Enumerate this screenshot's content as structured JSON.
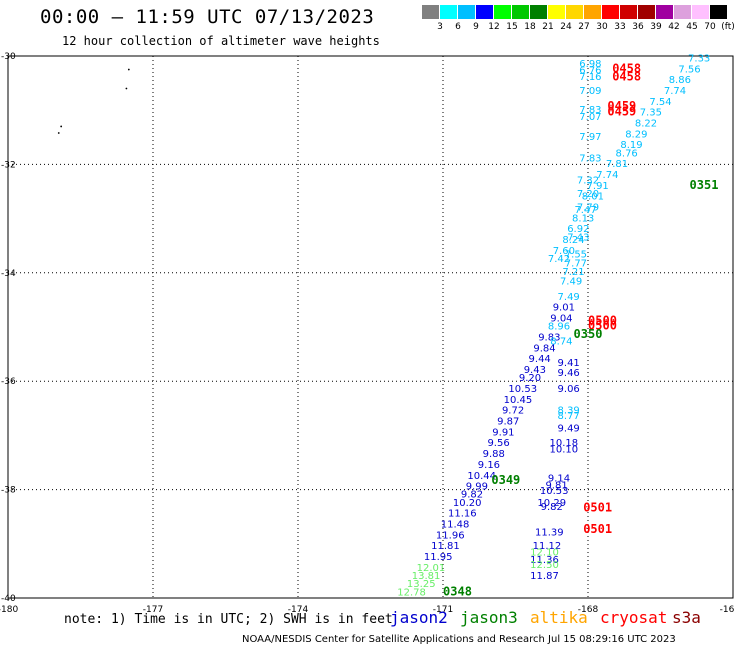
{
  "header": {
    "title": "00:00 – 11:59 UTC 07/13/2023",
    "subtitle": "12 hour collection of altimeter wave heights"
  },
  "colorbar": {
    "unit": "(ft)",
    "swatches": [
      {
        "color": "#808080",
        "label": "3"
      },
      {
        "color": "#00ffff",
        "label": "6"
      },
      {
        "color": "#00bfff",
        "label": "9"
      },
      {
        "color": "#0000ff",
        "label": "12"
      },
      {
        "color": "#00ff00",
        "label": "15"
      },
      {
        "color": "#00c800",
        "label": "18"
      },
      {
        "color": "#008000",
        "label": "21"
      },
      {
        "color": "#ffff00",
        "label": "24"
      },
      {
        "color": "#ffd700",
        "label": "27"
      },
      {
        "color": "#ffa500",
        "label": "30"
      },
      {
        "color": "#ff0000",
        "label": "33"
      },
      {
        "color": "#d00000",
        "label": "36"
      },
      {
        "color": "#a00000",
        "label": "39"
      },
      {
        "color": "#a000a0",
        "label": "42"
      },
      {
        "color": "#dda0dd",
        "label": "45"
      },
      {
        "color": "#ffc0ff",
        "label": "70"
      },
      {
        "color": "#000000",
        "label": ""
      }
    ]
  },
  "map_data": {
    "lon_range": [
      -180,
      -165
    ],
    "lat_range": [
      -40,
      -30
    ],
    "lon_ticks": [
      "-180",
      "-177",
      "-174",
      "-171",
      "-168",
      "-16"
    ],
    "lat_ticks": [
      "-30",
      "-32",
      "-34",
      "-36",
      "-38",
      "-40"
    ],
    "pass_labels": [
      {
        "text": "0458",
        "lon": -167.2,
        "lat": -30.3,
        "color": "#ff0000"
      },
      {
        "text": "0458",
        "lon": -167.2,
        "lat": -30.45,
        "color": "#ff0000"
      },
      {
        "text": "0459",
        "lon": -167.3,
        "lat": -31.0,
        "color": "#ff0000"
      },
      {
        "text": "0459",
        "lon": -167.3,
        "lat": -31.1,
        "color": "#ff0000"
      },
      {
        "text": "0351",
        "lon": -165.6,
        "lat": -32.45,
        "color": "#008000"
      },
      {
        "text": "0500",
        "lon": -167.7,
        "lat": -34.95,
        "color": "#ff0000"
      },
      {
        "text": "0500",
        "lon": -167.7,
        "lat": -35.05,
        "color": "#ff0000"
      },
      {
        "text": "0350",
        "lon": -168.0,
        "lat": -35.2,
        "color": "#008000"
      },
      {
        "text": "0349",
        "lon": -169.7,
        "lat": -37.9,
        "color": "#008000"
      },
      {
        "text": "0501",
        "lon": -167.8,
        "lat": -38.4,
        "color": "#ff0000"
      },
      {
        "text": "0501",
        "lon": -167.8,
        "lat": -38.8,
        "color": "#ff0000"
      },
      {
        "text": "0348",
        "lon": -170.7,
        "lat": -39.95,
        "color": "#008000"
      }
    ],
    "observations": [
      {
        "v": "7.33",
        "lon": -165.7,
        "lat": -30.1,
        "c": "#00bfff"
      },
      {
        "v": "7.56",
        "lon": -165.9,
        "lat": -30.3,
        "c": "#00bfff"
      },
      {
        "v": "8.86",
        "lon": -166.1,
        "lat": -30.5,
        "c": "#00bfff"
      },
      {
        "v": "7.74",
        "lon": -166.2,
        "lat": -30.7,
        "c": "#00bfff"
      },
      {
        "v": "7.54",
        "lon": -166.5,
        "lat": -30.9,
        "c": "#00bfff"
      },
      {
        "v": "7.35",
        "lon": -166.7,
        "lat": -31.1,
        "c": "#00bfff"
      },
      {
        "v": "8.22",
        "lon": -166.8,
        "lat": -31.3,
        "c": "#00bfff"
      },
      {
        "v": "8.29",
        "lon": -167.0,
        "lat": -31.5,
        "c": "#00bfff"
      },
      {
        "v": "8.19",
        "lon": -167.1,
        "lat": -31.7,
        "c": "#00bfff"
      },
      {
        "v": "8.76",
        "lon": -167.2,
        "lat": -31.85,
        "c": "#00bfff"
      },
      {
        "v": "7.81",
        "lon": -167.4,
        "lat": -32.05,
        "c": "#00bfff"
      },
      {
        "v": "7.74",
        "lon": -167.6,
        "lat": -32.25,
        "c": "#00bfff"
      },
      {
        "v": "7.91",
        "lon": -167.8,
        "lat": -32.45,
        "c": "#00bfff"
      },
      {
        "v": "8.01",
        "lon": -167.9,
        "lat": -32.65,
        "c": "#00bfff"
      },
      {
        "v": "7.79",
        "lon": -168.0,
        "lat": -32.85,
        "c": "#00bfff"
      },
      {
        "v": "8.13",
        "lon": -168.1,
        "lat": -33.05,
        "c": "#00bfff"
      },
      {
        "v": "6.92",
        "lon": -168.2,
        "lat": -33.25,
        "c": "#00bfff"
      },
      {
        "v": "8.24",
        "lon": -168.3,
        "lat": -33.45,
        "c": "#00bfff"
      },
      {
        "v": "7.60",
        "lon": -168.5,
        "lat": -33.65,
        "c": "#00bfff"
      },
      {
        "v": "7.42",
        "lon": -168.6,
        "lat": -33.8,
        "c": "#00bfff"
      },
      {
        "v": "6.98",
        "lon": -167.95,
        "lat": -30.2,
        "c": "#00bfff"
      },
      {
        "v": "6.76",
        "lon": -167.95,
        "lat": -30.32,
        "c": "#00bfff"
      },
      {
        "v": "7.16",
        "lon": -167.95,
        "lat": -30.44,
        "c": "#00bfff"
      },
      {
        "v": "7.09",
        "lon": -167.95,
        "lat": -30.7,
        "c": "#00bfff"
      },
      {
        "v": "7.83",
        "lon": -167.95,
        "lat": -31.05,
        "c": "#00bfff"
      },
      {
        "v": "7.07",
        "lon": -167.95,
        "lat": -31.18,
        "c": "#00bfff"
      },
      {
        "v": "7.97",
        "lon": -167.95,
        "lat": -31.55,
        "c": "#00bfff"
      },
      {
        "v": "7.83",
        "lon": -167.95,
        "lat": -31.95,
        "c": "#00bfff"
      },
      {
        "v": "7.32",
        "lon": -168.0,
        "lat": -32.35,
        "c": "#00bfff"
      },
      {
        "v": "7.20",
        "lon": -168.0,
        "lat": -32.6,
        "c": "#00bfff"
      },
      {
        "v": "7.47",
        "lon": -168.05,
        "lat": -32.9,
        "c": "#00bfff"
      },
      {
        "v": "7.43",
        "lon": -168.2,
        "lat": -33.4,
        "c": "#00bfff"
      },
      {
        "v": "7.55",
        "lon": -168.25,
        "lat": -33.72,
        "c": "#00bfff"
      },
      {
        "v": "7.77",
        "lon": -168.25,
        "lat": -33.88,
        "c": "#00bfff"
      },
      {
        "v": "7.21",
        "lon": -168.3,
        "lat": -34.04,
        "c": "#00bfff"
      },
      {
        "v": "7.49",
        "lon": -168.35,
        "lat": -34.22,
        "c": "#00bfff"
      },
      {
        "v": "7.49",
        "lon": -168.4,
        "lat": -34.5,
        "c": "#00bfff"
      },
      {
        "v": "9.01",
        "lon": -168.5,
        "lat": -34.7,
        "c": "#0000cd"
      },
      {
        "v": "9.04",
        "lon": -168.55,
        "lat": -34.9,
        "c": "#0000cd"
      },
      {
        "v": "8.96",
        "lon": -168.6,
        "lat": -35.05,
        "c": "#00bfff"
      },
      {
        "v": "9.83",
        "lon": -168.8,
        "lat": -35.25,
        "c": "#0000cd"
      },
      {
        "v": "8.74",
        "lon": -168.55,
        "lat": -35.32,
        "c": "#00bfff"
      },
      {
        "v": "9.84",
        "lon": -168.9,
        "lat": -35.45,
        "c": "#0000cd"
      },
      {
        "v": "9.44",
        "lon": -169.0,
        "lat": -35.65,
        "c": "#0000cd"
      },
      {
        "v": "9.41",
        "lon": -168.4,
        "lat": -35.72,
        "c": "#0000cd"
      },
      {
        "v": "9.43",
        "lon": -169.1,
        "lat": -35.85,
        "c": "#0000cd"
      },
      {
        "v": "9.46",
        "lon": -168.4,
        "lat": -35.9,
        "c": "#0000cd"
      },
      {
        "v": "9.20",
        "lon": -169.2,
        "lat": -36.0,
        "c": "#0000cd"
      },
      {
        "v": "10.53",
        "lon": -169.35,
        "lat": -36.2,
        "c": "#0000cd"
      },
      {
        "v": "9.06",
        "lon": -168.4,
        "lat": -36.2,
        "c": "#0000cd"
      },
      {
        "v": "10.45",
        "lon": -169.45,
        "lat": -36.4,
        "c": "#0000cd"
      },
      {
        "v": "9.72",
        "lon": -169.55,
        "lat": -36.6,
        "c": "#0000cd"
      },
      {
        "v": "8.39",
        "lon": -168.4,
        "lat": -36.6,
        "c": "#00bfff"
      },
      {
        "v": "8.77",
        "lon": -168.4,
        "lat": -36.7,
        "c": "#00bfff"
      },
      {
        "v": "9.87",
        "lon": -169.65,
        "lat": -36.8,
        "c": "#0000cd"
      },
      {
        "v": "9.49",
        "lon": -168.4,
        "lat": -36.93,
        "c": "#0000cd"
      },
      {
        "v": "9.91",
        "lon": -169.75,
        "lat": -37.0,
        "c": "#0000cd"
      },
      {
        "v": "9.56",
        "lon": -169.85,
        "lat": -37.2,
        "c": "#0000cd"
      },
      {
        "v": "10.18",
        "lon": -168.5,
        "lat": -37.2,
        "c": "#0000cd"
      },
      {
        "v": "10.10",
        "lon": -168.5,
        "lat": -37.32,
        "c": "#0000cd"
      },
      {
        "v": "9.88",
        "lon": -169.95,
        "lat": -37.4,
        "c": "#0000cd"
      },
      {
        "v": "9.16",
        "lon": -170.05,
        "lat": -37.6,
        "c": "#0000cd"
      },
      {
        "v": "10.44",
        "lon": -170.2,
        "lat": -37.8,
        "c": "#0000cd"
      },
      {
        "v": "9.14",
        "lon": -168.6,
        "lat": -37.85,
        "c": "#0000cd"
      },
      {
        "v": "9.99",
        "lon": -170.3,
        "lat": -38.0,
        "c": "#0000cd"
      },
      {
        "v": "9.81",
        "lon": -168.65,
        "lat": -37.98,
        "c": "#0000cd"
      },
      {
        "v": "10.53",
        "lon": -168.7,
        "lat": -38.08,
        "c": "#0000cd"
      },
      {
        "v": "9.82",
        "lon": -170.4,
        "lat": -38.15,
        "c": "#0000cd"
      },
      {
        "v": "10.20",
        "lon": -170.5,
        "lat": -38.3,
        "c": "#0000cd"
      },
      {
        "v": "10.29",
        "lon": -168.75,
        "lat": -38.3,
        "c": "#0000cd"
      },
      {
        "v": "9.82",
        "lon": -168.75,
        "lat": -38.38,
        "c": "#0000cd"
      },
      {
        "v": "11.16",
        "lon": -170.6,
        "lat": -38.5,
        "c": "#0000cd"
      },
      {
        "v": "11.48",
        "lon": -170.75,
        "lat": -38.7,
        "c": "#0000cd"
      },
      {
        "v": "11.96",
        "lon": -170.85,
        "lat": -38.9,
        "c": "#0000cd"
      },
      {
        "v": "11.39",
        "lon": -168.8,
        "lat": -38.85,
        "c": "#0000cd"
      },
      {
        "v": "11.81",
        "lon": -170.95,
        "lat": -39.1,
        "c": "#0000cd"
      },
      {
        "v": "11.12",
        "lon": -168.85,
        "lat": -39.1,
        "c": "#0000cd"
      },
      {
        "v": "11.95",
        "lon": -171.1,
        "lat": -39.3,
        "c": "#0000cd"
      },
      {
        "v": "12.10",
        "lon": -168.9,
        "lat": -39.22,
        "c": "#66ee66"
      },
      {
        "v": "11.36",
        "lon": -168.9,
        "lat": -39.35,
        "c": "#0000cd"
      },
      {
        "v": "12.50",
        "lon": -168.9,
        "lat": -39.45,
        "c": "#66ee66"
      },
      {
        "v": "12.01",
        "lon": -171.25,
        "lat": -39.5,
        "c": "#66ee66"
      },
      {
        "v": "13.81",
        "lon": -171.35,
        "lat": -39.65,
        "c": "#66ee66"
      },
      {
        "v": "11.87",
        "lon": -168.9,
        "lat": -39.65,
        "c": "#0000cd"
      },
      {
        "v": "13.25",
        "lon": -171.45,
        "lat": -39.8,
        "c": "#66ee66"
      },
      {
        "v": "12.78",
        "lon": -171.65,
        "lat": -39.95,
        "c": "#66ee66"
      }
    ]
  },
  "note": "note: 1) Time is in UTC; 2) SWH is in feet",
  "satellites": [
    {
      "name": "jason2",
      "color": "#0000cd"
    },
    {
      "name": "jason3",
      "color": "#008000"
    },
    {
      "name": "altika",
      "color": "#ffa500"
    },
    {
      "name": "cryosat",
      "color": "#ff0000"
    },
    {
      "name": "s3a",
      "color": "#8b0000"
    }
  ],
  "footer": "NOAA/NESDIS Center for Satellite Applications and Research    Jul 15 08:29:16 UTC 2023"
}
